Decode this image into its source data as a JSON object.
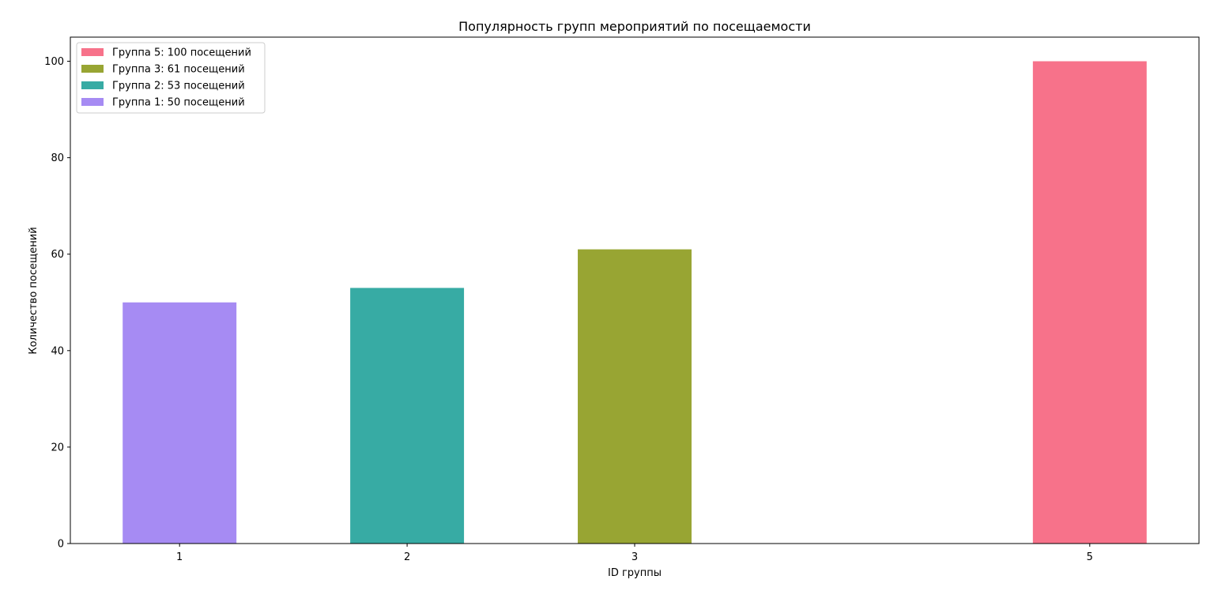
{
  "chart_data": {
    "type": "bar",
    "title": "Популярность групп мероприятий по посещаемости",
    "xlabel": "ID группы",
    "ylabel": "Количество посещений",
    "ylim": [
      0,
      105
    ],
    "yticks": [
      0,
      20,
      40,
      60,
      80,
      100
    ],
    "xlim": [
      0.52,
      5.48
    ],
    "bar_width": 0.5,
    "grid": false,
    "legend_position": "top-left",
    "bars": [
      {
        "x": 1,
        "label": "1",
        "value": 50,
        "color": "#a68bf3"
      },
      {
        "x": 2,
        "label": "2",
        "value": 53,
        "color": "#37aba4"
      },
      {
        "x": 3,
        "label": "3",
        "value": 61,
        "color": "#98a533"
      },
      {
        "x": 5,
        "label": "5",
        "value": 100,
        "color": "#f7728a"
      }
    ],
    "legend": [
      {
        "label": "Группа 5: 100 посещений",
        "color": "#f7728a"
      },
      {
        "label": "Группа 3: 61 посещений",
        "color": "#98a533"
      },
      {
        "label": "Группа 2: 53 посещений",
        "color": "#37aba4"
      },
      {
        "label": "Группа 1: 50 посещений",
        "color": "#a68bf3"
      }
    ]
  }
}
